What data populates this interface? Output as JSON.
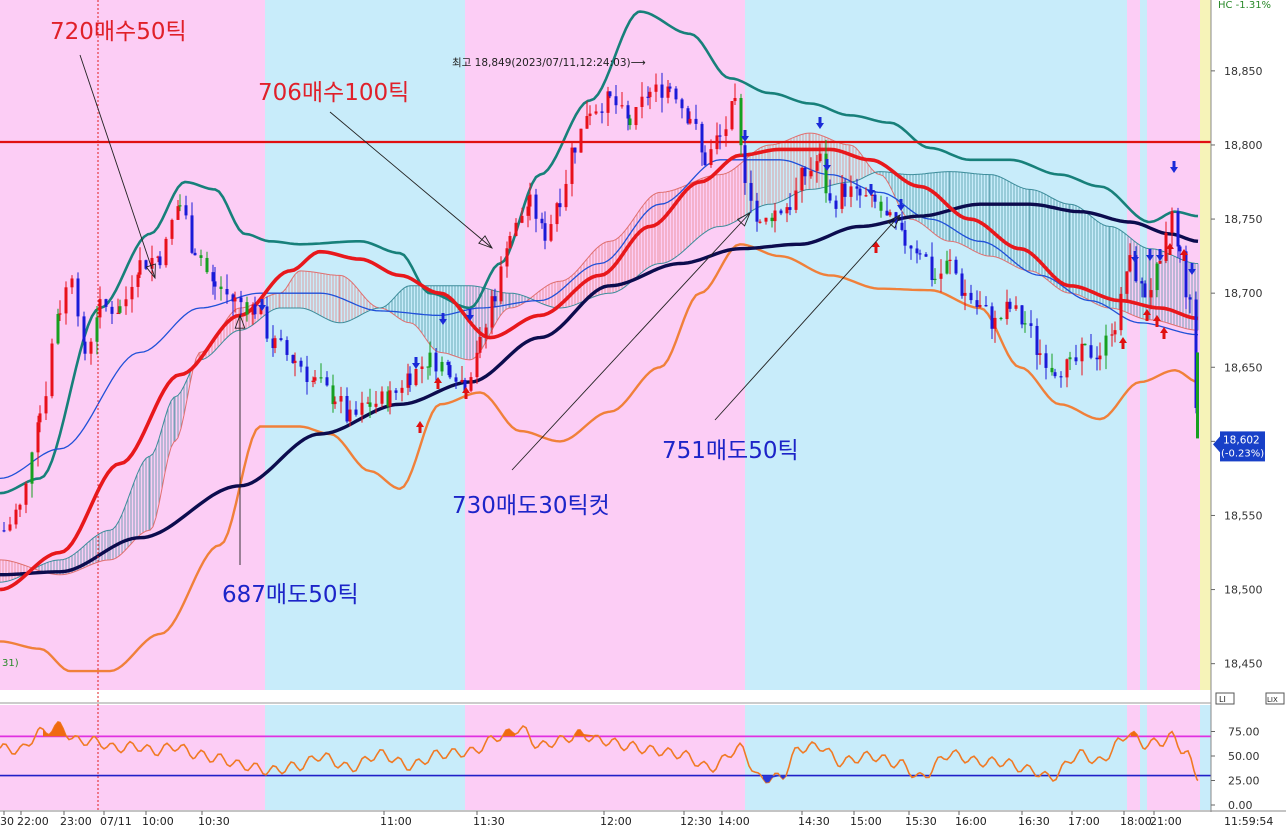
{
  "header": {
    "top_right": "HC  -1.31%"
  },
  "chart_data": [
    {
      "type": "candlestick",
      "title": "",
      "y_ticks": [
        "18,850",
        "18,800",
        "18,750",
        "18,700",
        "18,650",
        "18,600",
        "18,550",
        "18,500",
        "18,450"
      ],
      "ylim": [
        18425,
        18900
      ],
      "x_tick_labels": [
        "30",
        "22:00",
        "23:00",
        "07/11",
        "10:00",
        "10:30",
        "11:00",
        "11:30",
        "12:00",
        "12:30",
        "14:00",
        "14:30",
        "15:00",
        "15:30",
        "16:00",
        "16:30",
        "17:00",
        "18:00",
        "21:00"
      ],
      "reference_line": 18802,
      "high_label": "최고 18,849(2023/07/11,12:24:03)",
      "high_arrow": "⟶",
      "last_price": "18,602",
      "last_change": "(-0.23%)",
      "side_label": "31)",
      "session_backgrounds": [
        "#fccdf5",
        "#c8ecfa"
      ],
      "series": [
        {
          "name": "",
          "color": "#e8181c",
          "kind": "moving-average"
        },
        {
          "name": "",
          "color": "#0c0c4e",
          "kind": "moving-average"
        },
        {
          "name": "",
          "color": "#2050d8",
          "kind": "moving-average"
        },
        {
          "name": "",
          "color": "#17807a",
          "kind": "bollinger-upper"
        },
        {
          "name": "",
          "color": "#f0803a",
          "kind": "bollinger-lower"
        }
      ],
      "annotations": [
        {
          "text": "720매수50틱",
          "color": "red"
        },
        {
          "text": "706매수100틱",
          "color": "red"
        },
        {
          "text": "687매도50틱",
          "color": "blue"
        },
        {
          "text": "730매도30틱컷",
          "color": "blue"
        },
        {
          "text": "751매도50틱",
          "color": "blue"
        }
      ]
    },
    {
      "type": "line",
      "title": "",
      "y_ticks": [
        "75.00",
        "50.00",
        "25.00",
        "0.00"
      ],
      "ylim": [
        0,
        100
      ],
      "upper_band": 70,
      "lower_band": 30,
      "colors": {
        "line": "#f07a24",
        "upper": "#e030e0",
        "lower": "#2020c8"
      }
    }
  ],
  "status": {
    "clock": "11:59:54",
    "panel_btn_1": "LI",
    "panel_btn_2": "LIX"
  }
}
